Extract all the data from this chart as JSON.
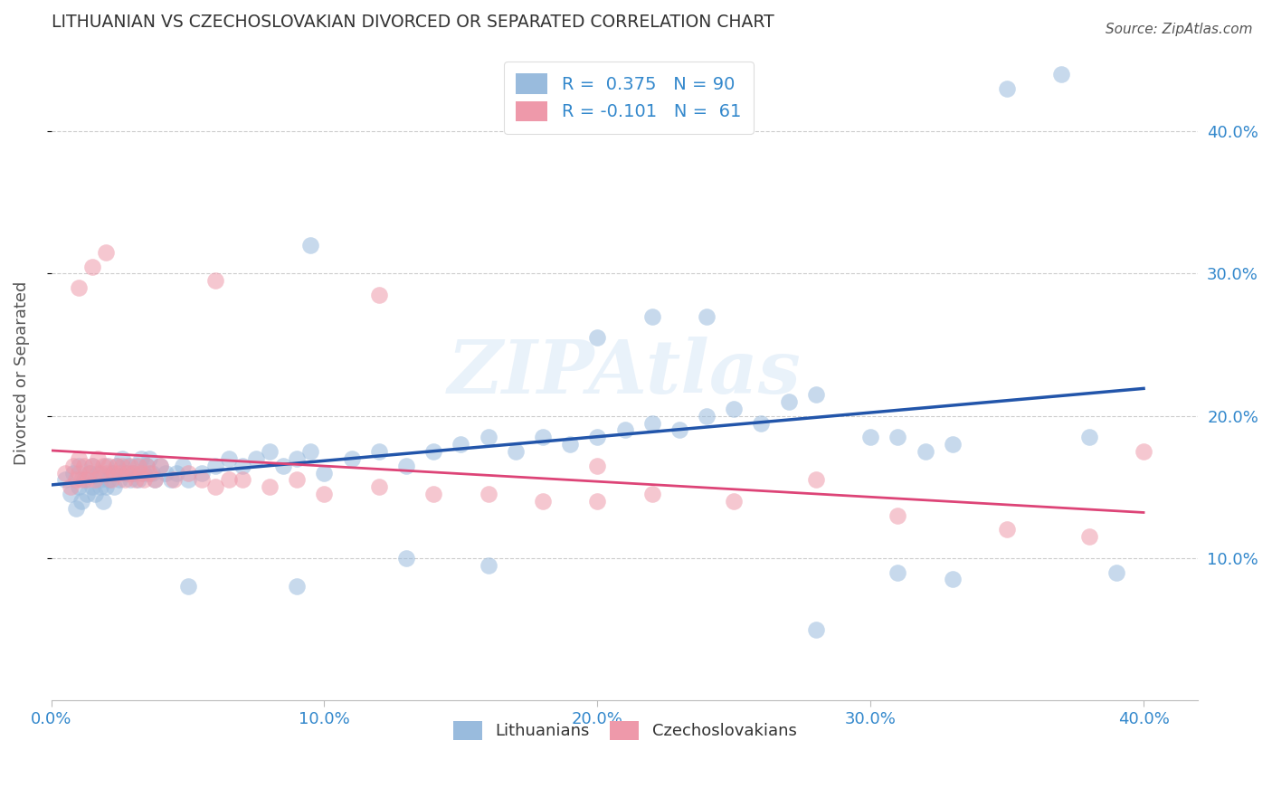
{
  "title": "LITHUANIAN VS CZECHOSLOVAKIAN DIVORCED OR SEPARATED CORRELATION CHART",
  "source": "Source: ZipAtlas.com",
  "ylabel": "Divorced or Separated",
  "ytick_labels": [
    "10.0%",
    "20.0%",
    "30.0%",
    "40.0%"
  ],
  "ytick_values": [
    0.1,
    0.2,
    0.3,
    0.4
  ],
  "xtick_labels": [
    "0.0%",
    "10.0%",
    "20.0%",
    "30.0%",
    "40.0%"
  ],
  "xtick_values": [
    0.0,
    0.1,
    0.2,
    0.3,
    0.4
  ],
  "xlim": [
    0.0,
    0.42
  ],
  "ylim": [
    0.0,
    0.46
  ],
  "blue_color": "#99bbdd",
  "pink_color": "#ee99aa",
  "blue_line_color": "#2255aa",
  "pink_line_color": "#dd4477",
  "watermark": "ZIPAtlas",
  "dot_size": 180,
  "dot_alpha": 0.55,
  "legend_label_blue": "R =  0.375   N = 90",
  "legend_label_pink": "R = -0.101   N =  61",
  "legend_text_color": "#3388cc",
  "bottom_label_blue": "Lithuanians",
  "bottom_label_pink": "Czechoslovakians",
  "blue_x": [
    0.005,
    0.007,
    0.008,
    0.009,
    0.01,
    0.01,
    0.011,
    0.012,
    0.013,
    0.014,
    0.015,
    0.015,
    0.016,
    0.017,
    0.018,
    0.018,
    0.019,
    0.02,
    0.02,
    0.021,
    0.022,
    0.023,
    0.024,
    0.025,
    0.026,
    0.027,
    0.028,
    0.029,
    0.03,
    0.031,
    0.032,
    0.033,
    0.034,
    0.035,
    0.036,
    0.037,
    0.038,
    0.04,
    0.042,
    0.044,
    0.046,
    0.048,
    0.05,
    0.055,
    0.06,
    0.065,
    0.07,
    0.075,
    0.08,
    0.085,
    0.09,
    0.095,
    0.1,
    0.11,
    0.12,
    0.13,
    0.14,
    0.15,
    0.16,
    0.17,
    0.18,
    0.19,
    0.2,
    0.21,
    0.22,
    0.23,
    0.24,
    0.25,
    0.26,
    0.27,
    0.28,
    0.3,
    0.31,
    0.32,
    0.33,
    0.35,
    0.37,
    0.38,
    0.05,
    0.09,
    0.13,
    0.22,
    0.28,
    0.33,
    0.39,
    0.095,
    0.16,
    0.2,
    0.24,
    0.31
  ],
  "blue_y": [
    0.155,
    0.145,
    0.16,
    0.135,
    0.15,
    0.165,
    0.14,
    0.155,
    0.145,
    0.16,
    0.15,
    0.165,
    0.145,
    0.16,
    0.15,
    0.155,
    0.14,
    0.15,
    0.165,
    0.155,
    0.16,
    0.15,
    0.165,
    0.155,
    0.17,
    0.16,
    0.165,
    0.155,
    0.16,
    0.165,
    0.155,
    0.17,
    0.16,
    0.165,
    0.17,
    0.16,
    0.155,
    0.165,
    0.16,
    0.155,
    0.16,
    0.165,
    0.155,
    0.16,
    0.165,
    0.17,
    0.165,
    0.17,
    0.175,
    0.165,
    0.17,
    0.175,
    0.16,
    0.17,
    0.175,
    0.165,
    0.175,
    0.18,
    0.185,
    0.175,
    0.185,
    0.18,
    0.185,
    0.19,
    0.195,
    0.19,
    0.2,
    0.205,
    0.195,
    0.21,
    0.215,
    0.185,
    0.185,
    0.175,
    0.18,
    0.43,
    0.44,
    0.185,
    0.08,
    0.08,
    0.1,
    0.27,
    0.05,
    0.085,
    0.09,
    0.32,
    0.095,
    0.255,
    0.27,
    0.09
  ],
  "pink_x": [
    0.005,
    0.007,
    0.008,
    0.009,
    0.01,
    0.01,
    0.011,
    0.012,
    0.013,
    0.014,
    0.015,
    0.016,
    0.017,
    0.018,
    0.019,
    0.02,
    0.021,
    0.022,
    0.023,
    0.024,
    0.025,
    0.026,
    0.027,
    0.028,
    0.029,
    0.03,
    0.031,
    0.032,
    0.033,
    0.034,
    0.035,
    0.036,
    0.038,
    0.04,
    0.045,
    0.05,
    0.055,
    0.06,
    0.065,
    0.07,
    0.08,
    0.09,
    0.1,
    0.12,
    0.14,
    0.16,
    0.18,
    0.2,
    0.22,
    0.25,
    0.28,
    0.31,
    0.35,
    0.38,
    0.01,
    0.015,
    0.02,
    0.06,
    0.12,
    0.2,
    0.4
  ],
  "pink_y": [
    0.16,
    0.15,
    0.165,
    0.155,
    0.16,
    0.17,
    0.155,
    0.165,
    0.155,
    0.16,
    0.165,
    0.155,
    0.17,
    0.16,
    0.165,
    0.16,
    0.165,
    0.155,
    0.16,
    0.165,
    0.16,
    0.165,
    0.155,
    0.16,
    0.165,
    0.16,
    0.155,
    0.165,
    0.16,
    0.155,
    0.165,
    0.16,
    0.155,
    0.165,
    0.155,
    0.16,
    0.155,
    0.15,
    0.155,
    0.155,
    0.15,
    0.155,
    0.145,
    0.15,
    0.145,
    0.145,
    0.14,
    0.14,
    0.145,
    0.14,
    0.155,
    0.13,
    0.12,
    0.115,
    0.29,
    0.305,
    0.315,
    0.295,
    0.285,
    0.165,
    0.175
  ]
}
